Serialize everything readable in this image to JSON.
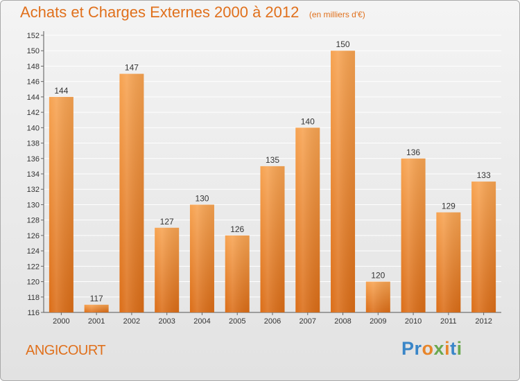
{
  "title": "Achats et Charges Externes 2000 à 2012",
  "title_unit": "(en milliers d'€)",
  "location": "ANGICOURT",
  "logo": {
    "text": "Proxiti",
    "letters": [
      {
        "ch": "P",
        "color": "#3a86c8"
      },
      {
        "ch": "r",
        "color": "#3a86c8"
      },
      {
        "ch": "o",
        "color": "#e8852a"
      },
      {
        "ch": "x",
        "color": "#6aa84f"
      },
      {
        "ch": "i",
        "color": "#e8852a"
      },
      {
        "ch": "t",
        "color": "#3a86c8"
      },
      {
        "ch": "i",
        "color": "#6aa84f"
      }
    ]
  },
  "colors": {
    "bar_top": "#f7a351",
    "bar_bottom": "#db6d17",
    "accent": "#e0701c",
    "grid": "#ffffff",
    "text": "#333333"
  },
  "chart_data": {
    "type": "bar",
    "title": "Achats et Charges Externes 2000 à 2012",
    "xlabel": "",
    "ylabel": "",
    "categories": [
      "2000",
      "2001",
      "2002",
      "2003",
      "2004",
      "2005",
      "2006",
      "2007",
      "2008",
      "2009",
      "2010",
      "2011",
      "2012"
    ],
    "values": [
      144,
      117,
      147,
      127,
      130,
      126,
      135,
      140,
      150,
      120,
      136,
      129,
      133
    ],
    "data_labels": [
      "144",
      "117",
      "147",
      "127",
      "130",
      "126",
      "135",
      "140",
      "150",
      "120",
      "136",
      "129",
      "133"
    ],
    "ylim": [
      116,
      152
    ],
    "yticks": [
      116,
      118,
      120,
      122,
      124,
      126,
      128,
      130,
      132,
      134,
      136,
      138,
      140,
      142,
      144,
      146,
      148,
      150,
      152
    ],
    "grid": true,
    "legend": "none"
  }
}
